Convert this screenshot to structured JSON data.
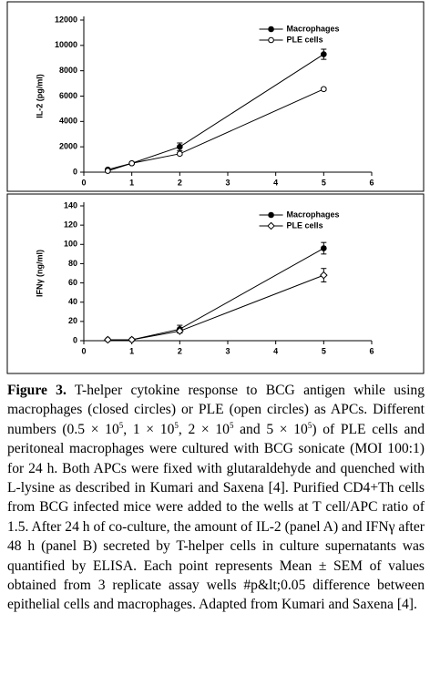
{
  "chart_data": [
    {
      "type": "line",
      "ylabel": "IL-2 (pg/ml)",
      "x": [
        0.5,
        1,
        2,
        5
      ],
      "xlim": [
        0,
        6
      ],
      "xticks": [
        0,
        1,
        2,
        3,
        4,
        5,
        6
      ],
      "ylim": [
        0,
        12000
      ],
      "yticks": [
        0,
        2000,
        4000,
        6000,
        8000,
        10000,
        12000
      ],
      "legend": "upper right",
      "series": [
        {
          "name": "Macrophages",
          "color": "#000000",
          "marker": "circle",
          "filled": true,
          "values": [
            200,
            700,
            2000,
            9300
          ],
          "errors": [
            60,
            60,
            300,
            400
          ]
        },
        {
          "name": "PLE cells",
          "color": "#000000",
          "marker": "circle",
          "filled": false,
          "values": [
            100,
            700,
            1450,
            6550
          ],
          "errors": [
            50,
            50,
            100,
            100
          ]
        }
      ]
    },
    {
      "type": "line",
      "ylabel": "IFNγ (ng/ml)",
      "x": [
        0.5,
        1,
        2,
        5
      ],
      "xlim": [
        0,
        6
      ],
      "xticks": [
        0,
        1,
        2,
        3,
        4,
        5,
        6
      ],
      "ylim": [
        0,
        140
      ],
      "yticks": [
        0,
        20,
        40,
        60,
        80,
        100,
        120,
        140
      ],
      "legend": "upper right",
      "series": [
        {
          "name": "Macrophages",
          "color": "#000000",
          "marker": "circle",
          "filled": true,
          "values": [
            1,
            1,
            12,
            96
          ],
          "errors": [
            0.5,
            0.5,
            4,
            6
          ]
        },
        {
          "name": "PLE cells",
          "color": "#000000",
          "marker": "diamond",
          "filled": false,
          "values": [
            1,
            1,
            10,
            68
          ],
          "errors": [
            0.5,
            0.5,
            2,
            7
          ]
        }
      ]
    }
  ],
  "caption": {
    "label": "Figure 3.",
    "runs": [
      {
        "text": " T-helper cytokine response to BCG antigen while using macrophages (closed circles) or PLE (open circles) as APCs. Different numbers (0.5 × 10"
      },
      {
        "sup": "5"
      },
      {
        "text": ", 1 × 10"
      },
      {
        "sup": "5"
      },
      {
        "text": ", 2 × 10"
      },
      {
        "sup": "5"
      },
      {
        "text": " and 5 × 10"
      },
      {
        "sup": "5"
      },
      {
        "text": ") of PLE cells and peritoneal macrophages were cultured with BCG sonicate (MOI 100:1) for 24 h. Both APCs were fixed with glutaraldehyde and quenched with L-lysine as described in Kumari and Saxena [4]. Purified CD4+Th cells from BCG infected mice were added to the wells at T cell/APC ratio of 1.5. After 24 h of co-culture, the amount of IL-2 (panel A) and IFNγ after 48 h (panel B) secreted by T-helper cells in culture supernatants was quantified by ELISA. Each point represents Mean ± SEM of values obtained from 3 replicate assay wells #p&lt;0.05 difference between epithelial cells and macrophages. Adapted from Kumari and Saxena [4]."
      }
    ]
  }
}
